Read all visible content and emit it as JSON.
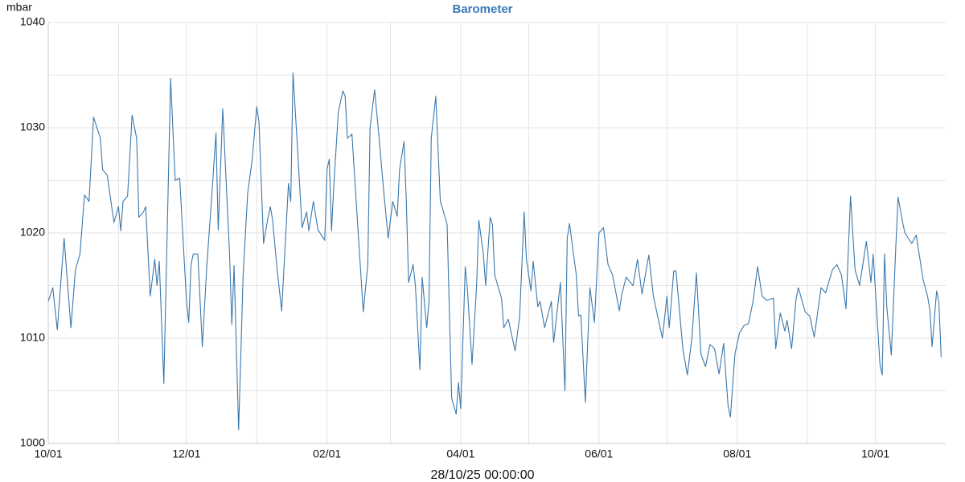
{
  "chart_data": {
    "type": "line",
    "title": "Barometer",
    "ylabel": "mbar",
    "xlabel": "28/10/25 00:00:00",
    "xlim": [
      0,
      396
    ],
    "ylim": [
      1000,
      1040
    ],
    "xticks": [
      {
        "value": 0,
        "label": "10/01"
      },
      {
        "value": 61,
        "label": "12/01"
      },
      {
        "value": 123,
        "label": "02/01"
      },
      {
        "value": 182,
        "label": "04/01"
      },
      {
        "value": 243,
        "label": "06/01"
      },
      {
        "value": 304,
        "label": "08/01"
      },
      {
        "value": 365,
        "label": "10/01"
      }
    ],
    "x_minor_ticks": [
      31,
      92,
      151,
      212,
      273,
      335
    ],
    "yticks": [
      1000,
      1010,
      1020,
      1030,
      1040
    ],
    "y_minor_ticks": [
      1005,
      1015,
      1025,
      1035
    ],
    "grid": true,
    "title_color": "#3a7ab7",
    "series": [
      {
        "name": "Barometer",
        "color": "#3a78ad",
        "x": [
          0,
          2,
          4,
          7,
          10,
          12,
          14,
          16,
          18,
          20,
          23,
          24,
          26,
          29,
          31,
          32,
          33,
          35,
          37,
          39,
          40,
          42,
          43,
          45,
          47,
          48,
          49,
          51,
          54,
          56,
          58,
          61,
          62,
          63,
          64,
          66,
          68,
          70,
          72,
          74,
          75,
          77,
          80,
          81,
          82,
          84,
          86,
          88,
          90,
          92,
          93,
          95,
          97,
          98,
          99,
          101,
          103,
          106,
          107,
          108,
          110,
          112,
          114,
          115,
          117,
          119,
          122,
          123,
          124,
          125,
          126,
          128,
          130,
          131,
          132,
          134,
          135,
          137,
          139,
          141,
          142,
          144,
          146,
          148,
          150,
          152,
          154,
          155,
          157,
          158,
          159,
          161,
          162,
          164,
          165,
          167,
          168,
          169,
          171,
          173,
          174,
          176,
          178,
          180,
          181,
          182,
          184,
          185,
          187,
          189,
          190,
          192,
          193,
          195,
          196,
          197,
          200,
          201,
          203,
          206,
          208,
          210,
          211,
          213,
          214,
          216,
          217,
          219,
          222,
          223,
          226,
          228,
          229,
          230,
          233,
          234,
          235,
          237,
          239,
          241,
          243,
          245,
          247,
          249,
          252,
          253,
          255,
          258,
          260,
          262,
          265,
          267,
          269,
          271,
          273,
          274,
          276,
          277,
          280,
          282,
          284,
          286,
          288,
          290,
          292,
          294,
          296,
          298,
          300,
          301,
          303,
          305,
          307,
          309,
          311,
          313,
          315,
          317,
          320,
          321,
          323,
          325,
          326,
          328,
          330,
          331,
          334,
          336,
          338,
          341,
          343,
          346,
          348,
          350,
          352,
          354,
          356,
          358,
          361,
          363,
          364,
          367,
          368,
          369,
          370,
          372,
          374,
          375,
          377,
          378,
          381,
          383,
          384,
          386,
          388,
          389,
          390,
          392,
          393,
          394
        ],
        "values": [
          1013.5,
          1014.8,
          1010.8,
          1019.5,
          1011,
          1016.5,
          1018,
          1023.6,
          1023,
          1031,
          1029,
          1026,
          1025.5,
          1021,
          1022.5,
          1020.2,
          1023,
          1023.5,
          1031.2,
          1029,
          1021.5,
          1022,
          1022.5,
          1014,
          1017.5,
          1015,
          1017.3,
          1005.7,
          1034.7,
          1025,
          1025.2,
          1013.5,
          1011.5,
          1017,
          1018,
          1018,
          1009.2,
          1017,
          1023,
          1029.5,
          1020.3,
          1031.8,
          1018,
          1011.3,
          1016.9,
          1001.3,
          1016,
          1023.8,
          1027,
          1032,
          1030.5,
          1019,
          1021.5,
          1022.5,
          1021.2,
          1016.5,
          1012.6,
          1024.7,
          1023,
          1035.2,
          1028,
          1020.5,
          1022,
          1020.2,
          1023,
          1020.3,
          1019.3,
          1026,
          1027,
          1020.2,
          1024.5,
          1031.5,
          1033.5,
          1033,
          1029,
          1029.4,
          1026,
          1019.2,
          1012.5,
          1017,
          1030,
          1033.6,
          1029,
          1024,
          1019.5,
          1023,
          1021.6,
          1026,
          1028.7,
          1023,
          1015.3,
          1017,
          1015,
          1007,
          1015.8,
          1011,
          1013.5,
          1029,
          1033,
          1023,
          1022.3,
          1020.8,
          1004.3,
          1002.8,
          1005.8,
          1003.3,
          1016.8,
          1014.5,
          1007.5,
          1015,
          1021.2,
          1018,
          1015,
          1021.5,
          1020.8,
          1016,
          1013.8,
          1011,
          1011.8,
          1008.8,
          1012,
          1022,
          1017.5,
          1014.5,
          1017.3,
          1013,
          1013.5,
          1011,
          1013.5,
          1009.6,
          1015.3,
          1005,
          1019.5,
          1020.9,
          1016,
          1012.1,
          1012.2,
          1003.9,
          1014.8,
          1011.5,
          1020,
          1020.5,
          1017,
          1016,
          1012.6,
          1014.1,
          1015.8,
          1015,
          1017.5,
          1014.2,
          1017.9,
          1014,
          1012,
          1010,
          1014,
          1011,
          1016.4,
          1016.4,
          1009,
          1006.5,
          1010,
          1016.2,
          1008.5,
          1007.3,
          1009.4,
          1009,
          1006.6,
          1009.5,
          1003.5,
          1002.5,
          1008.5,
          1010.5,
          1011.2,
          1011.4,
          1013.5,
          1016.8,
          1014,
          1013.6,
          1013.8,
          1009,
          1012.4,
          1010.7,
          1011.7,
          1009,
          1013.8,
          1014.8,
          1012.5,
          1012.1,
          1010.1,
          1014.8,
          1014.3,
          1016.5,
          1017,
          1016,
          1012.8,
          1023.5,
          1016.5,
          1015,
          1019.2,
          1015.3,
          1018,
          1007.5,
          1006.5,
          1018,
          1013,
          1008.4,
          1018.8,
          1023.4,
          1021,
          1020,
          1019,
          1019.8,
          1018.4,
          1015.6,
          1014,
          1012.7,
          1009.2,
          1014.5,
          1013.4,
          1008.2
        ]
      }
    ]
  }
}
